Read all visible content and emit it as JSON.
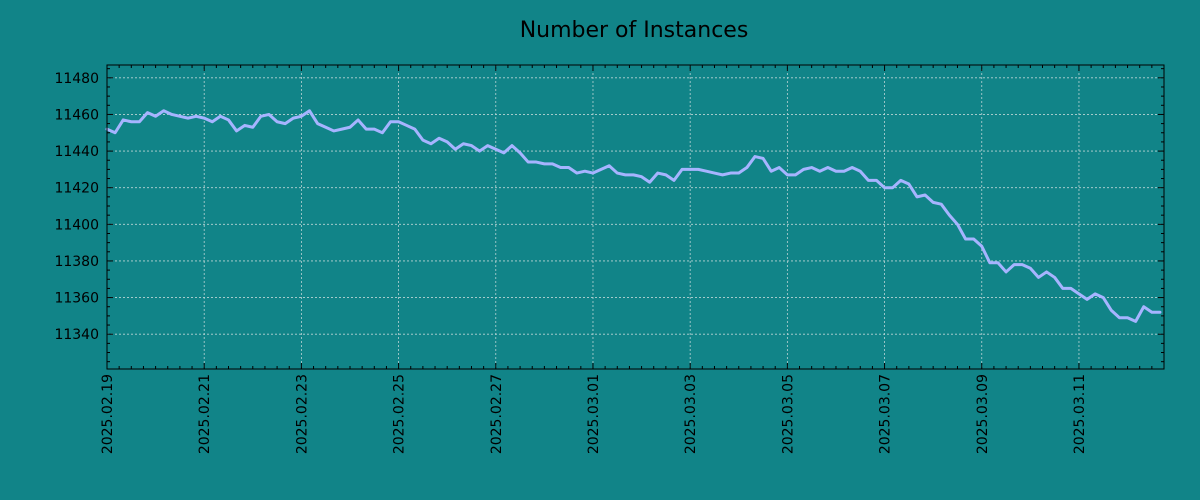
{
  "chart_data": {
    "type": "line",
    "title": "Number of Instances",
    "xlabel": "",
    "ylabel": "",
    "grid": true,
    "line_color": "#a6b4ff",
    "background_color": "#118488",
    "xlim": [
      "2025-02-19",
      "2025-03-12T18:00"
    ],
    "ylim": [
      11321,
      11487
    ],
    "y_ticks": [
      11340,
      11360,
      11380,
      11400,
      11420,
      11440,
      11460,
      11480
    ],
    "x_ticks": [
      "2025.02.19",
      "2025.02.21",
      "2025.02.23",
      "2025.02.25",
      "2025.02.27",
      "2025.03.01",
      "2025.03.03",
      "2025.03.05",
      "2025.03.07",
      "2025.03.09",
      "2025.03.11"
    ],
    "x": [
      "2025-02-19T00:00",
      "2025-02-19T04:00",
      "2025-02-19T08:00",
      "2025-02-19T12:00",
      "2025-02-19T16:00",
      "2025-02-19T20:00",
      "2025-02-20T00:00",
      "2025-02-20T04:00",
      "2025-02-20T08:00",
      "2025-02-20T12:00",
      "2025-02-20T16:00",
      "2025-02-20T20:00",
      "2025-02-21T00:00",
      "2025-02-21T04:00",
      "2025-02-21T08:00",
      "2025-02-21T12:00",
      "2025-02-21T16:00",
      "2025-02-21T20:00",
      "2025-02-22T00:00",
      "2025-02-22T04:00",
      "2025-02-22T08:00",
      "2025-02-22T12:00",
      "2025-02-22T16:00",
      "2025-02-22T20:00",
      "2025-02-23T00:00",
      "2025-02-23T04:00",
      "2025-02-23T08:00",
      "2025-02-23T12:00",
      "2025-02-23T16:00",
      "2025-02-23T20:00",
      "2025-02-24T00:00",
      "2025-02-24T04:00",
      "2025-02-24T08:00",
      "2025-02-24T12:00",
      "2025-02-24T16:00",
      "2025-02-24T20:00",
      "2025-02-25T00:00",
      "2025-02-25T04:00",
      "2025-02-25T08:00",
      "2025-02-25T12:00",
      "2025-02-25T16:00",
      "2025-02-25T20:00",
      "2025-02-26T00:00",
      "2025-02-26T04:00",
      "2025-02-26T08:00",
      "2025-02-26T12:00",
      "2025-02-26T16:00",
      "2025-02-26T20:00",
      "2025-02-27T00:00",
      "2025-02-27T04:00",
      "2025-02-27T08:00",
      "2025-02-27T12:00",
      "2025-02-27T16:00",
      "2025-02-27T20:00",
      "2025-02-28T00:00",
      "2025-02-28T04:00",
      "2025-02-28T08:00",
      "2025-02-28T12:00",
      "2025-02-28T16:00",
      "2025-02-28T20:00",
      "2025-03-01T00:00",
      "2025-03-01T04:00",
      "2025-03-01T08:00",
      "2025-03-01T12:00",
      "2025-03-01T16:00",
      "2025-03-01T20:00",
      "2025-03-02T00:00",
      "2025-03-02T04:00",
      "2025-03-02T08:00",
      "2025-03-02T12:00",
      "2025-03-02T16:00",
      "2025-03-02T20:00",
      "2025-03-03T00:00",
      "2025-03-03T04:00",
      "2025-03-03T08:00",
      "2025-03-03T12:00",
      "2025-03-03T16:00",
      "2025-03-03T20:00",
      "2025-03-04T00:00",
      "2025-03-04T04:00",
      "2025-03-04T08:00",
      "2025-03-04T12:00",
      "2025-03-04T16:00",
      "2025-03-04T20:00",
      "2025-03-05T00:00",
      "2025-03-05T04:00",
      "2025-03-05T08:00",
      "2025-03-05T12:00",
      "2025-03-05T16:00",
      "2025-03-05T20:00",
      "2025-03-06T00:00",
      "2025-03-06T04:00",
      "2025-03-06T08:00",
      "2025-03-06T12:00",
      "2025-03-06T16:00",
      "2025-03-06T20:00",
      "2025-03-07T00:00",
      "2025-03-07T04:00",
      "2025-03-07T08:00",
      "2025-03-07T12:00",
      "2025-03-07T16:00",
      "2025-03-07T20:00",
      "2025-03-08T00:00",
      "2025-03-08T04:00",
      "2025-03-08T08:00",
      "2025-03-08T12:00",
      "2025-03-08T16:00",
      "2025-03-08T20:00",
      "2025-03-09T00:00",
      "2025-03-09T04:00",
      "2025-03-09T08:00",
      "2025-03-09T12:00",
      "2025-03-09T16:00",
      "2025-03-09T20:00",
      "2025-03-10T00:00",
      "2025-03-10T04:00",
      "2025-03-10T08:00",
      "2025-03-10T12:00",
      "2025-03-10T16:00",
      "2025-03-10T20:00",
      "2025-03-11T00:00",
      "2025-03-11T04:00",
      "2025-03-11T08:00",
      "2025-03-11T12:00",
      "2025-03-11T16:00",
      "2025-03-11T20:00",
      "2025-03-12T00:00",
      "2025-03-12T04:00",
      "2025-03-12T08:00",
      "2025-03-12T12:00",
      "2025-03-12T16:00"
    ],
    "series": [
      {
        "values": [
          11452,
          11450,
          11457,
          11456,
          11456,
          11461,
          11459,
          11462,
          11460,
          11459,
          11458,
          11459,
          11458,
          11456,
          11459,
          11457,
          11451,
          11454,
          11453,
          11459,
          11460,
          11456,
          11455,
          11458,
          11459,
          11462,
          11455,
          11453,
          11451,
          11452,
          11453,
          11457,
          11452,
          11452,
          11450,
          11456,
          11456,
          11454,
          11452,
          11446,
          11444,
          11447,
          11445,
          11441,
          11444,
          11443,
          11440,
          11443,
          11441,
          11439,
          11443,
          11439,
          11434,
          11434,
          11433,
          11433,
          11431,
          11431,
          11428,
          11429,
          11428,
          11430,
          11432,
          11428,
          11427,
          11427,
          11426,
          11423,
          11428,
          11427,
          11424,
          11430,
          11430,
          11430,
          11429,
          11428,
          11427,
          11428,
          11428,
          11431,
          11437,
          11436,
          11429,
          11431,
          11427,
          11427,
          11430,
          11431,
          11429,
          11431,
          11429,
          11429,
          11431,
          11429,
          11424,
          11424,
          11420,
          11420,
          11424,
          11422,
          11415,
          11416,
          11412,
          11411,
          11405,
          11400,
          11392,
          11392,
          11388,
          11379,
          11379,
          11374,
          11378,
          11378,
          11376,
          11371,
          11374,
          11371,
          11365,
          11365,
          11362,
          11359,
          11362,
          11360,
          11353,
          11349,
          11349,
          11347,
          11355,
          11352,
          11352
        ]
      }
    ]
  }
}
